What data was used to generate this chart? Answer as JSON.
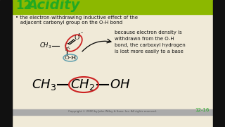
{
  "bg_color": "#f0ead8",
  "left_black_bar_color": "#111111",
  "header_green": "#8cb800",
  "title_number": "12",
  "title_text": "Acidity",
  "title_color": "#22aa22",
  "bullet_line1": "• the electron-withdrawing inductive effect of the",
  "bullet_line2": "   adjacent carbonyl group on the O-H bond",
  "text_color": "#111111",
  "explanation_lines": [
    "because electron density is",
    "withdrawn from the O-H",
    "bond, the carboxyl hydrogen",
    "is lost more easily to a base"
  ],
  "slide_number": "12-16",
  "slide_num_color": "#22aa22",
  "bottom_bar_color": "#aaaaaa",
  "copyright_text": "Copyright © 2000 by John Wiley & Sons, Inc. All rights reserved."
}
